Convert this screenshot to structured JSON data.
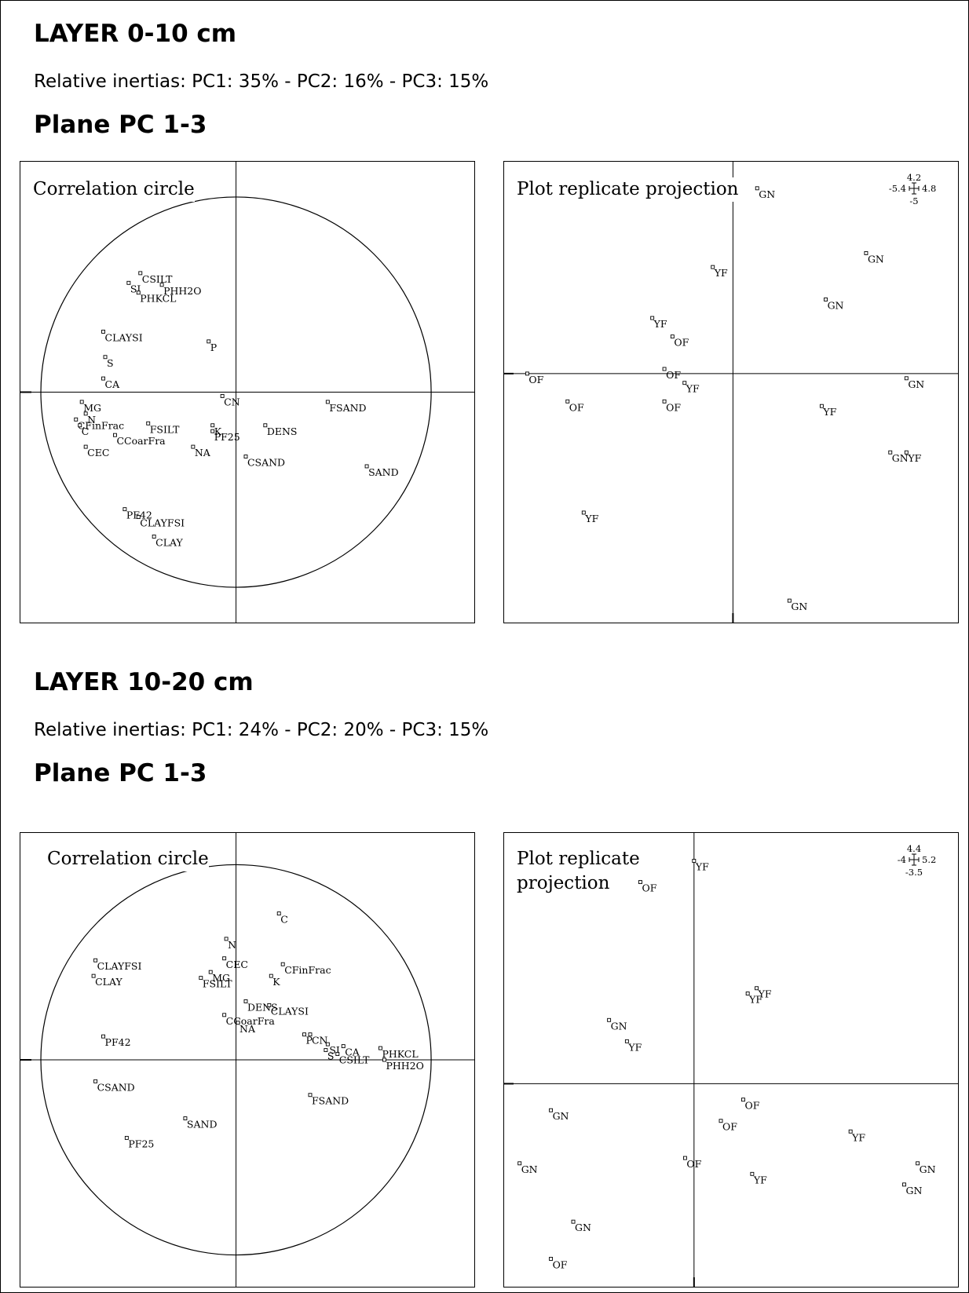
{
  "layers": [
    {
      "heading": "LAYER 0-10 cm",
      "inertias": "Relative inertias: PC1: 35% - PC2: 16% - PC3: 15%",
      "plane": "Plane PC 1-3",
      "correlation": {
        "title": "Correlation circle",
        "points": [
          {
            "label": "CSILT",
            "x": -0.49,
            "y": 0.61
          },
          {
            "label": "SI",
            "x": -0.55,
            "y": 0.56
          },
          {
            "label": "PHH2O",
            "x": -0.38,
            "y": 0.55
          },
          {
            "label": "PHKCL",
            "x": -0.5,
            "y": 0.51
          },
          {
            "label": "CLAYSI",
            "x": -0.68,
            "y": 0.31
          },
          {
            "label": "P",
            "x": -0.14,
            "y": 0.26
          },
          {
            "label": "S",
            "x": -0.67,
            "y": 0.18
          },
          {
            "label": "CA",
            "x": -0.68,
            "y": 0.07
          },
          {
            "label": "CN",
            "x": -0.07,
            "y": -0.02
          },
          {
            "label": "FSAND",
            "x": 0.47,
            "y": -0.05
          },
          {
            "label": "MG",
            "x": -0.79,
            "y": -0.05
          },
          {
            "label": "N",
            "x": -0.77,
            "y": -0.11
          },
          {
            "label": "CFinFrac",
            "x": -0.82,
            "y": -0.14
          },
          {
            "label": "C",
            "x": -0.8,
            "y": -0.17
          },
          {
            "label": "FSILT",
            "x": -0.45,
            "y": -0.16
          },
          {
            "label": "K",
            "x": -0.12,
            "y": -0.17
          },
          {
            "label": "DENS",
            "x": 0.15,
            "y": -0.17
          },
          {
            "label": "CCoarFra",
            "x": -0.62,
            "y": -0.22
          },
          {
            "label": "PF25",
            "x": -0.12,
            "y": -0.2
          },
          {
            "label": "CEC",
            "x": -0.77,
            "y": -0.28
          },
          {
            "label": "NA",
            "x": -0.22,
            "y": -0.28
          },
          {
            "label": "CSAND",
            "x": 0.05,
            "y": -0.33
          },
          {
            "label": "SAND",
            "x": 0.67,
            "y": -0.38
          },
          {
            "label": "PF42",
            "x": -0.57,
            "y": -0.6
          },
          {
            "label": "CLAYFSI",
            "x": -0.5,
            "y": -0.64
          },
          {
            "label": "CLAY",
            "x": -0.42,
            "y": -0.74
          }
        ]
      },
      "projection": {
        "title": "Plot replicate projection",
        "scale": {
          "up": "4.2",
          "left": "-5.4",
          "right": "4.8",
          "down": "-5"
        },
        "xlim": [
          -5.4,
          4.8
        ],
        "ylim": [
          -5,
          4.2
        ],
        "points": [
          {
            "label": "GN",
            "x": 0.6,
            "y": 4.0
          },
          {
            "label": "GN",
            "x": 3.3,
            "y": 2.6
          },
          {
            "label": "YF",
            "x": -0.5,
            "y": 2.3
          },
          {
            "label": "GN",
            "x": 2.3,
            "y": 1.6
          },
          {
            "label": "YF",
            "x": -2.0,
            "y": 1.2
          },
          {
            "label": "OF",
            "x": -1.5,
            "y": 0.8
          },
          {
            "label": "OF",
            "x": -1.7,
            "y": 0.1
          },
          {
            "label": "OF",
            "x": -5.1,
            "y": 0.0
          },
          {
            "label": "YF",
            "x": -1.2,
            "y": -0.2
          },
          {
            "label": "GN",
            "x": 4.3,
            "y": -0.1
          },
          {
            "label": "OF",
            "x": -4.1,
            "y": -0.6
          },
          {
            "label": "OF",
            "x": -1.7,
            "y": -0.6
          },
          {
            "label": "YF",
            "x": 2.2,
            "y": -0.7
          },
          {
            "label": "GN",
            "x": 3.9,
            "y": -1.7
          },
          {
            "label": "YF",
            "x": 4.3,
            "y": -1.7
          },
          {
            "label": "YF",
            "x": -3.7,
            "y": -3.0
          },
          {
            "label": "GN",
            "x": 1.4,
            "y": -4.9
          }
        ]
      }
    },
    {
      "heading": "LAYER 10-20 cm",
      "inertias": "Relative inertias: PC1: 24% - PC2: 20% - PC3: 15%",
      "plane": "Plane PC 1-3",
      "correlation": {
        "title": "Correlation circle",
        "points": [
          {
            "label": "C",
            "x": 0.22,
            "y": 0.75
          },
          {
            "label": "N",
            "x": -0.05,
            "y": 0.62
          },
          {
            "label": "CLAYFSI",
            "x": -0.72,
            "y": 0.51
          },
          {
            "label": "CEC",
            "x": -0.06,
            "y": 0.52
          },
          {
            "label": "CFinFrac",
            "x": 0.24,
            "y": 0.49
          },
          {
            "label": "CLAY",
            "x": -0.73,
            "y": 0.43
          },
          {
            "label": "MG",
            "x": -0.13,
            "y": 0.45
          },
          {
            "label": "FSILT",
            "x": -0.18,
            "y": 0.42
          },
          {
            "label": "K",
            "x": 0.18,
            "y": 0.43
          },
          {
            "label": "DENS",
            "x": 0.05,
            "y": 0.3
          },
          {
            "label": "CLAYSI",
            "x": 0.17,
            "y": 0.28
          },
          {
            "label": "CCoarFra",
            "x": -0.06,
            "y": 0.23
          },
          {
            "label": "NA",
            "x": 0.01,
            "y": 0.19
          },
          {
            "label": "PF42",
            "x": -0.68,
            "y": 0.12
          },
          {
            "label": "P",
            "x": 0.35,
            "y": 0.13
          },
          {
            "label": "CN",
            "x": 0.38,
            "y": 0.13
          },
          {
            "label": "SI",
            "x": 0.47,
            "y": 0.08
          },
          {
            "label": "CA",
            "x": 0.55,
            "y": 0.07
          },
          {
            "label": "S",
            "x": 0.46,
            "y": 0.05
          },
          {
            "label": "PHKCL",
            "x": 0.74,
            "y": 0.06
          },
          {
            "label": "CSILT",
            "x": 0.52,
            "y": 0.03
          },
          {
            "label": "PHH2O",
            "x": 0.76,
            "y": 0.0
          },
          {
            "label": "CSAND",
            "x": -0.72,
            "y": -0.11
          },
          {
            "label": "FSAND",
            "x": 0.38,
            "y": -0.18
          },
          {
            "label": "SAND",
            "x": -0.26,
            "y": -0.3
          },
          {
            "label": "PF25",
            "x": -0.56,
            "y": -0.4
          }
        ]
      },
      "projection": {
        "title": "Plot replicate projection",
        "scale": {
          "up": "4.4",
          "left": "-4",
          "right": "5.2",
          "down": "-3.5"
        },
        "xlim": [
          -4,
          5.2
        ],
        "ylim": [
          -3.5,
          4.4
        ],
        "points": [
          {
            "label": "YF",
            "x": 0.0,
            "y": 4.2
          },
          {
            "label": "OF",
            "x": -1.2,
            "y": 3.8
          },
          {
            "label": "YF",
            "x": 1.4,
            "y": 1.8
          },
          {
            "label": "YF",
            "x": 1.2,
            "y": 1.7
          },
          {
            "label": "GN",
            "x": -1.9,
            "y": 1.2
          },
          {
            "label": "YF",
            "x": -1.5,
            "y": 0.8
          },
          {
            "label": "OF",
            "x": 1.1,
            "y": -0.3
          },
          {
            "label": "GN",
            "x": -3.2,
            "y": -0.5
          },
          {
            "label": "OF",
            "x": 0.6,
            "y": -0.7
          },
          {
            "label": "YF",
            "x": 3.5,
            "y": -0.9
          },
          {
            "label": "OF",
            "x": -0.2,
            "y": -1.4
          },
          {
            "label": "GN",
            "x": -3.9,
            "y": -1.5
          },
          {
            "label": "GN",
            "x": 5.0,
            "y": -1.5
          },
          {
            "label": "YF",
            "x": 1.3,
            "y": -1.7
          },
          {
            "label": "GN",
            "x": 4.7,
            "y": -1.9
          },
          {
            "label": "GN",
            "x": -2.7,
            "y": -2.6
          },
          {
            "label": "OF",
            "x": -3.2,
            "y": -3.3
          }
        ]
      }
    }
  ],
  "chart_data": [
    {
      "type": "scatter",
      "title": "Correlation circle",
      "xlim": [
        -1,
        1
      ],
      "ylim": [
        -1,
        1
      ],
      "grid": false
    },
    {
      "type": "scatter",
      "title": "Plot replicate projection",
      "xlim": [
        -5.4,
        4.8
      ],
      "ylim": [
        -5,
        4.2
      ],
      "grid": false
    },
    {
      "type": "scatter",
      "title": "Correlation circle",
      "xlim": [
        -1,
        1
      ],
      "ylim": [
        -1,
        1
      ],
      "grid": false
    },
    {
      "type": "scatter",
      "title": "Plot replicate projection",
      "xlim": [
        -4,
        5.2
      ],
      "ylim": [
        -3.5,
        4.4
      ],
      "grid": false
    }
  ]
}
